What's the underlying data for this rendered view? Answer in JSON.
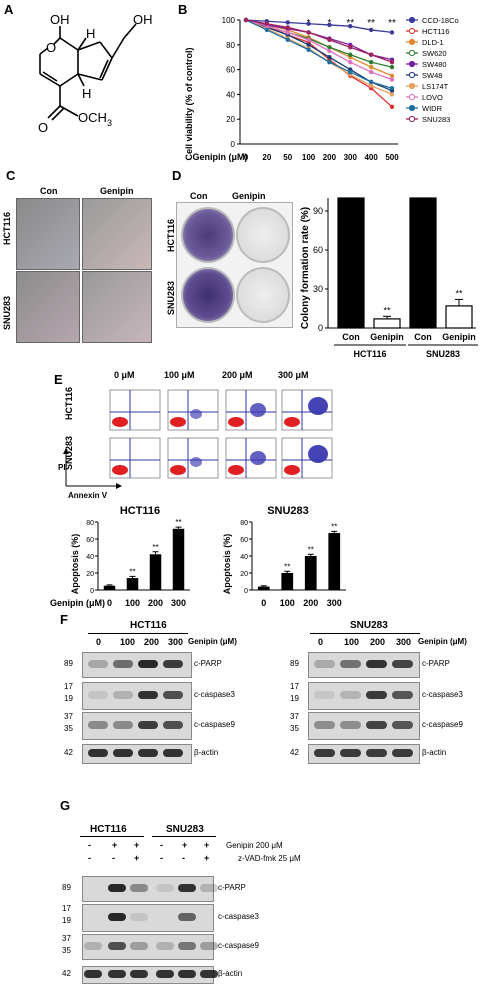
{
  "panels": {
    "A": "A",
    "B": "B",
    "C": "C",
    "D": "D",
    "E": "E",
    "F": "F",
    "G": "G"
  },
  "structure": {
    "oh_top": "OH",
    "oh_side": "OH",
    "h_top": "H",
    "h_bottom": "H",
    "ester": "OCH",
    "sub3": "3",
    "o_ring": "O"
  },
  "colors": {
    "CCD-18Co": "#3b3b9c",
    "HCT116": "#e03030",
    "DLD-1": "#e08a30",
    "SW620": "#2e7d32",
    "SW480": "#7b1fa2",
    "SW48": "#1a3b6b",
    "LS174T": "#e8a060",
    "LOVO": "#e070c0",
    "WIDR": "#1f6fa0",
    "SNU283": "#a0205a"
  },
  "chart_data": [
    {
      "type": "line",
      "ylabel": "Cell viability (% of control)",
      "xlabel": "Genipin (μM)",
      "categories": [
        "0",
        "20",
        "50",
        "100",
        "200",
        "300",
        "400",
        "500"
      ],
      "ylim": [
        0,
        100
      ],
      "yticks": [
        "0",
        "20",
        "40",
        "60",
        "80",
        "100"
      ],
      "significance": [
        "",
        "",
        "",
        "*",
        "*",
        "**",
        "**",
        "**"
      ],
      "series": [
        {
          "name": "CCD-18Co",
          "values": [
            100,
            99,
            98,
            97,
            96,
            95,
            92,
            90
          ]
        },
        {
          "name": "HCT116",
          "values": [
            100,
            95,
            88,
            82,
            68,
            55,
            45,
            30
          ]
        },
        {
          "name": "DLD-1",
          "values": [
            100,
            96,
            92,
            86,
            78,
            70,
            62,
            55
          ]
        },
        {
          "name": "SW620",
          "values": [
            100,
            95,
            90,
            85,
            78,
            72,
            66,
            62
          ]
        },
        {
          "name": "SW480",
          "values": [
            100,
            96,
            93,
            90,
            85,
            80,
            72,
            68
          ]
        },
        {
          "name": "SW48",
          "values": [
            100,
            94,
            88,
            80,
            70,
            60,
            50,
            43
          ]
        },
        {
          "name": "LS174T",
          "values": [
            100,
            93,
            85,
            77,
            66,
            56,
            47,
            40
          ]
        },
        {
          "name": "LOVO",
          "values": [
            100,
            95,
            90,
            84,
            75,
            66,
            58,
            52
          ]
        },
        {
          "name": "WIDR",
          "values": [
            100,
            92,
            84,
            76,
            66,
            58,
            50,
            45
          ]
        },
        {
          "name": "SNU283",
          "values": [
            100,
            97,
            94,
            90,
            84,
            78,
            72,
            66
          ]
        }
      ]
    },
    {
      "type": "bar",
      "ylabel": "Colony formation rate (%)",
      "categories": [
        "Con",
        "Genipin",
        "Con",
        "Genipin"
      ],
      "groups": [
        "HCT116",
        "SNU283"
      ],
      "values": [
        100,
        7,
        100,
        17
      ],
      "errors": [
        0,
        2,
        0,
        5
      ],
      "ylim": [
        0,
        100
      ],
      "yticks": [
        "0",
        "30",
        "60",
        "90"
      ],
      "significance": [
        "",
        "**",
        "",
        "**"
      ]
    },
    {
      "type": "bar",
      "title": "HCT116",
      "ylabel": "Apoptosis (%)",
      "xlabel": "Genipin (μM)",
      "categories": [
        "0",
        "100",
        "200",
        "300"
      ],
      "values": [
        5,
        14,
        42,
        72
      ],
      "errors": [
        1,
        2,
        3,
        2
      ],
      "ylim": [
        0,
        80
      ],
      "yticks": [
        "0",
        "20",
        "40",
        "60",
        "80"
      ],
      "significance": [
        "",
        "**",
        "**",
        "**"
      ]
    },
    {
      "type": "bar",
      "title": "SNU283",
      "ylabel": "Apoptosis (%)",
      "categories": [
        "0",
        "100",
        "200",
        "300"
      ],
      "values": [
        4,
        20,
        40,
        67
      ],
      "errors": [
        1,
        2,
        2,
        2
      ],
      "ylim": [
        0,
        80
      ],
      "yticks": [
        "0",
        "20",
        "40",
        "60",
        "80"
      ],
      "significance": [
        "",
        "**",
        "**",
        "**"
      ]
    }
  ],
  "panelC": {
    "con": "Con",
    "genipin": "Genipin",
    "row1": "HCT116",
    "row2": "SNU283"
  },
  "panelD": {
    "con": "Con",
    "genipin": "Genipin",
    "row1": "HCT116",
    "row2": "SNU283"
  },
  "panelE": {
    "doses": [
      "0 μM",
      "100 μM",
      "200 μM",
      "300 μM"
    ],
    "row1": "HCT116",
    "row2": "SNU283",
    "ylabel": "PI",
    "xlabel": "Annexin V"
  },
  "panelF": {
    "left": {
      "title": "HCT116",
      "doses": [
        "0",
        "100",
        "200",
        "300"
      ],
      "genipin": "Genipin (μM)"
    },
    "right": {
      "title": "SNU283",
      "doses": [
        "0",
        "100",
        "200",
        "300"
      ],
      "genipin": "Genipin (μM)"
    },
    "rows": [
      {
        "label": "c-PARP",
        "mw": [
          "89"
        ]
      },
      {
        "label": "c-caspase3",
        "mw": [
          "17",
          "19"
        ]
      },
      {
        "label": "c-caspase9",
        "mw": [
          "37",
          "35"
        ]
      },
      {
        "label": "β-actin",
        "mw": [
          "42"
        ]
      }
    ]
  },
  "panelG": {
    "group1": "HCT116",
    "group2": "SNU283",
    "treat1": "Genipin 200 μM",
    "treat2": "z-VAD-fmk 25 μM",
    "row1": [
      "-",
      "+",
      "+",
      "-",
      "+",
      "+"
    ],
    "row2": [
      "-",
      "-",
      "+",
      "-",
      "-",
      "+"
    ],
    "rows": [
      {
        "label": "c-PARP",
        "mw": [
          "89"
        ]
      },
      {
        "label": "c-caspase3",
        "mw": [
          "17",
          "19"
        ]
      },
      {
        "label": "c-caspase9",
        "mw": [
          "37",
          "35"
        ]
      },
      {
        "label": "β-actin",
        "mw": [
          "42"
        ]
      }
    ]
  }
}
